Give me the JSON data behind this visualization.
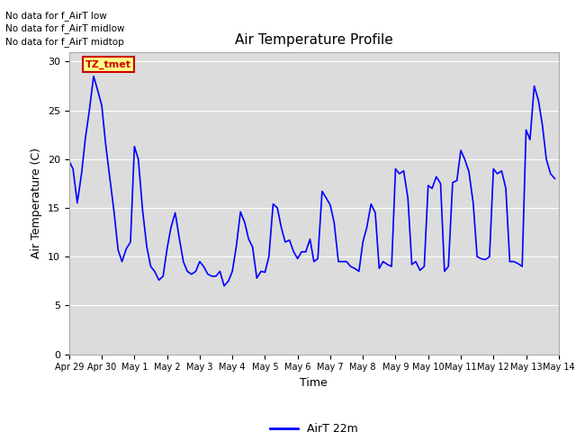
{
  "title": "Air Temperature Profile",
  "xlabel": "Time",
  "ylabel": "Air Temperature (C)",
  "legend_label": "AirT 22m",
  "line_color": "#0000ff",
  "background_color": "#dcdcdc",
  "fig_bg_color": "#ffffff",
  "ylim": [
    0,
    31
  ],
  "yticks": [
    0,
    5,
    10,
    15,
    20,
    25,
    30
  ],
  "annotations": [
    "No data for f_AirT low",
    "No data for f_AirT midlow",
    "No data for f_AirT midtop"
  ],
  "box_facecolor": "#ffff88",
  "box_edgecolor": "#cc0000",
  "box_text": "TZ_tmet",
  "box_text_color": "#cc0000",
  "x_tick_labels": [
    "Apr 29",
    "Apr 30",
    "May 1",
    "May 2",
    "May 3",
    "May 4",
    "May 5",
    "May 6",
    "May 7",
    "May 8",
    "May 9",
    "May 10",
    "May 11",
    "May 12",
    "May 13",
    "May 14"
  ],
  "xlim": [
    0,
    15
  ],
  "x_values": [
    0.0,
    0.12,
    0.25,
    0.38,
    0.5,
    0.62,
    0.75,
    0.88,
    1.0,
    1.12,
    1.25,
    1.38,
    1.5,
    1.62,
    1.75,
    1.88,
    2.0,
    2.12,
    2.25,
    2.38,
    2.5,
    2.62,
    2.75,
    2.88,
    3.0,
    3.12,
    3.25,
    3.38,
    3.5,
    3.62,
    3.75,
    3.88,
    4.0,
    4.12,
    4.25,
    4.38,
    4.5,
    4.62,
    4.75,
    4.88,
    5.0,
    5.12,
    5.25,
    5.38,
    5.5,
    5.62,
    5.75,
    5.88,
    6.0,
    6.12,
    6.25,
    6.38,
    6.5,
    6.62,
    6.75,
    6.88,
    7.0,
    7.12,
    7.25,
    7.38,
    7.5,
    7.62,
    7.75,
    7.88,
    8.0,
    8.12,
    8.25,
    8.38,
    8.5,
    8.62,
    8.75,
    8.88,
    9.0,
    9.12,
    9.25,
    9.38,
    9.5,
    9.62,
    9.75,
    9.88,
    10.0,
    10.12,
    10.25,
    10.38,
    10.5,
    10.62,
    10.75,
    10.88,
    11.0,
    11.12,
    11.25,
    11.38,
    11.5,
    11.62,
    11.75,
    11.88,
    12.0,
    12.12,
    12.25,
    12.38,
    12.5,
    12.62,
    12.75,
    12.88,
    13.0,
    13.12,
    13.25,
    13.38,
    13.5,
    13.62,
    13.75,
    13.88,
    14.0,
    14.12,
    14.25,
    14.38,
    14.5,
    14.62,
    14.75,
    14.88
  ],
  "y_values": [
    19.8,
    19.0,
    15.5,
    18.5,
    22.2,
    25.0,
    28.5,
    27.0,
    25.5,
    21.5,
    18.0,
    14.5,
    10.7,
    9.5,
    10.8,
    11.5,
    21.3,
    20.0,
    14.8,
    11.0,
    9.0,
    8.5,
    7.6,
    8.0,
    10.8,
    13.0,
    14.5,
    11.8,
    9.5,
    8.5,
    8.2,
    8.5,
    9.5,
    9.0,
    8.2,
    8.0,
    8.0,
    8.5,
    7.0,
    7.5,
    8.5,
    11.0,
    14.6,
    13.5,
    11.8,
    11.0,
    7.8,
    8.5,
    8.4,
    10.0,
    15.4,
    15.0,
    13.0,
    11.5,
    11.7,
    10.5,
    9.8,
    10.5,
    10.5,
    11.8,
    9.5,
    9.8,
    16.7,
    16.0,
    15.3,
    13.5,
    9.5,
    9.5,
    9.5,
    9.0,
    8.8,
    8.5,
    11.5,
    13.0,
    15.4,
    14.5,
    8.8,
    9.5,
    9.2,
    9.0,
    19.0,
    18.5,
    18.8,
    16.0,
    9.2,
    9.5,
    8.6,
    9.0,
    17.3,
    17.0,
    18.2,
    17.5,
    8.5,
    9.0,
    17.6,
    17.8,
    20.9,
    20.0,
    18.7,
    15.5,
    10.0,
    9.8,
    9.7,
    10.0,
    19.0,
    18.5,
    18.8,
    17.0,
    9.5,
    9.5,
    9.3,
    9.0,
    23.0,
    22.0,
    27.5,
    26.0,
    23.5,
    20.0,
    18.5,
    18.0
  ]
}
